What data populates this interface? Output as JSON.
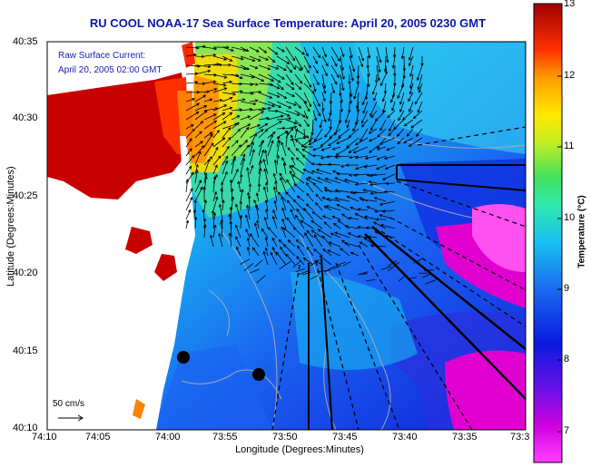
{
  "title": "RU COOL  NOAA-17 Sea Surface Temperature:  April 20, 2005 0230 GMT",
  "overlay": {
    "line1": "Raw Surface Current:",
    "line2": "April 20, 2005 02:00 GMT"
  },
  "axes": {
    "ylabel": "Latitude (Degrees:Minutes)",
    "xlabel": "Longitude (Degrees:Minutes)",
    "yticks": [
      "40:35",
      "40:30",
      "40:25",
      "40:20",
      "40:15",
      "40:10"
    ],
    "xticks": [
      "74:10",
      "74:05",
      "74:00",
      "73:55",
      "73:50",
      "73:45",
      "73:40",
      "73:35",
      "73:3"
    ]
  },
  "colorbar": {
    "label": "Temperature (°C)",
    "ticks": [
      "13",
      "12",
      "11",
      "10",
      "9",
      "8",
      "7"
    ],
    "range": [
      6.4,
      13
    ]
  },
  "scale": {
    "label": "50 cm/s",
    "speed_cm_s": 50
  },
  "colors": {
    "title": "#0a18a8",
    "land": "#ffffff",
    "warm": "#c80000",
    "cold": "#e000c8"
  }
}
